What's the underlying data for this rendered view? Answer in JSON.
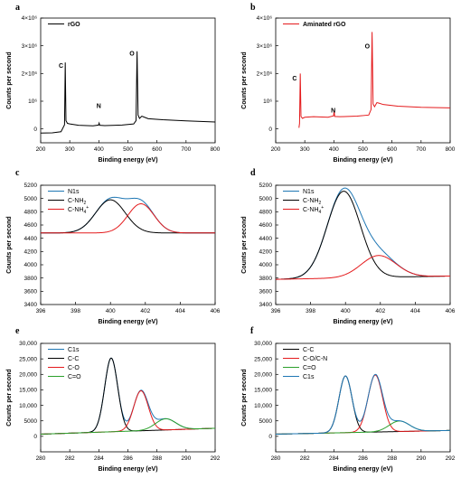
{
  "chart_data": [
    {
      "id": "a",
      "panel_label": "a",
      "type": "line",
      "xlabel": "Binding energy (eV)",
      "ylabel": "Counts per second",
      "xlim": [
        200,
        800
      ],
      "ylim": [
        -500000,
        4000000
      ],
      "xticks": [
        200,
        300,
        400,
        500,
        600,
        700,
        800
      ],
      "yticks": [
        {
          "value": 0,
          "label": "0"
        },
        {
          "value": 1000000,
          "label": "10⁶"
        },
        {
          "value": 2000000,
          "label": "2×10⁶"
        },
        {
          "value": 3000000,
          "label": "3×10⁶"
        },
        {
          "value": 4000000,
          "label": "4×10⁶"
        }
      ],
      "legend": {
        "position": "top-left",
        "bold": true
      },
      "series": [
        {
          "name": "rGO",
          "color": "#000000",
          "x": [
            200,
            240,
            270,
            282,
            284.5,
            287,
            292,
            300,
            330,
            380,
            399,
            401,
            403,
            420,
            480,
            520,
            528,
            531.5,
            535,
            540,
            548,
            555,
            570,
            620,
            700,
            800
          ],
          "y": [
            -150000,
            -140000,
            -100000,
            150000,
            2400000,
            300000,
            200000,
            180000,
            130000,
            110000,
            140000,
            210000,
            130000,
            120000,
            140000,
            180000,
            300000,
            2800000,
            500000,
            380000,
            460000,
            430000,
            370000,
            330000,
            290000,
            250000
          ]
        }
      ],
      "annotations": [
        {
          "text": "C",
          "x": 270,
          "y": 2200000
        },
        {
          "text": "N",
          "x": 400,
          "y": 750000
        },
        {
          "text": "O",
          "x": 514,
          "y": 2650000
        }
      ]
    },
    {
      "id": "b",
      "panel_label": "b",
      "type": "line",
      "xlabel": "Binding energy (eV)",
      "ylabel": "Counts per second",
      "xlim": [
        200,
        800
      ],
      "ylim": [
        -500000,
        4000000
      ],
      "xticks": [
        200,
        300,
        400,
        500,
        600,
        700,
        800
      ],
      "yticks": [
        {
          "value": 0,
          "label": "0"
        },
        {
          "value": 1000000,
          "label": "10⁶"
        },
        {
          "value": 2000000,
          "label": "2×10⁶"
        },
        {
          "value": 3000000,
          "label": "3×10⁶"
        },
        {
          "value": 4000000,
          "label": "4×10⁶"
        }
      ],
      "legend": {
        "position": "top-left",
        "bold": true
      },
      "series": [
        {
          "name": "Aminated rGO",
          "color": "#e41a1c",
          "x": [
            280,
            282,
            284.5,
            287,
            292,
            300,
            330,
            380,
            399,
            401,
            403,
            420,
            480,
            520,
            528,
            531.5,
            535,
            540,
            548,
            555,
            570,
            620,
            700,
            800
          ],
          "y": [
            40000,
            200000,
            2000000,
            450000,
            380000,
            420000,
            440000,
            420000,
            470000,
            650000,
            450000,
            440000,
            460000,
            500000,
            700000,
            3500000,
            900000,
            800000,
            950000,
            930000,
            880000,
            820000,
            780000,
            760000
          ]
        }
      ],
      "annotations": [
        {
          "text": "C",
          "x": 265,
          "y": 1750000
        },
        {
          "text": "N",
          "x": 398,
          "y": 600000
        },
        {
          "text": "O",
          "x": 515,
          "y": 2900000
        }
      ]
    },
    {
      "id": "c",
      "panel_label": "c",
      "type": "line",
      "xlabel": "Binding energy (eV)",
      "ylabel": "Counts per second",
      "xlim": [
        396,
        406
      ],
      "ylim": [
        3400,
        5200
      ],
      "xticks": [
        396,
        398,
        400,
        402,
        404,
        406
      ],
      "yticks": [
        {
          "value": 3400,
          "label": "3400"
        },
        {
          "value": 3600,
          "label": "3600"
        },
        {
          "value": 3800,
          "label": "3800"
        },
        {
          "value": 4000,
          "label": "4000"
        },
        {
          "value": 4200,
          "label": "4200"
        },
        {
          "value": 4400,
          "label": "4400"
        },
        {
          "value": 4600,
          "label": "4600"
        },
        {
          "value": 4800,
          "label": "4800"
        },
        {
          "value": 5000,
          "label": "5000"
        },
        {
          "value": 5200,
          "label": "5200"
        }
      ],
      "legend": {
        "position": "top-left",
        "bold": false
      },
      "baseline": 4480,
      "series": [
        {
          "name": "N1s",
          "color": "#1f77b4",
          "peaks": [
            [
              400.0,
              500,
              0.85
            ],
            [
              401.75,
              440,
              0.75
            ]
          ]
        },
        {
          "name": "C-NH",
          "sub": "2",
          "sup": "",
          "color": "#000000",
          "peaks": [
            [
              400.0,
              500,
              0.85
            ]
          ]
        },
        {
          "name": "C-NH",
          "sub": "4",
          "sup": "+",
          "color": "#e41a1c",
          "peaks": [
            [
              401.75,
              440,
              0.75
            ]
          ]
        }
      ]
    },
    {
      "id": "d",
      "panel_label": "d",
      "type": "line",
      "xlabel": "Binding energy (eV)",
      "ylabel": "Counts per second",
      "xlim": [
        396,
        406
      ],
      "ylim": [
        3400,
        5200
      ],
      "xticks": [
        396,
        398,
        400,
        402,
        404,
        406
      ],
      "yticks": [
        {
          "value": 3400,
          "label": "3400"
        },
        {
          "value": 3600,
          "label": "3600"
        },
        {
          "value": 3800,
          "label": "3800"
        },
        {
          "value": 4000,
          "label": "4000"
        },
        {
          "value": 4200,
          "label": "4200"
        },
        {
          "value": 4400,
          "label": "4400"
        },
        {
          "value": 4600,
          "label": "4600"
        },
        {
          "value": 4800,
          "label": "4800"
        },
        {
          "value": 5000,
          "label": "5000"
        },
        {
          "value": 5200,
          "label": "5200"
        }
      ],
      "legend": {
        "position": "top-left",
        "bold": false
      },
      "baseline_tilt": [
        396,
        3780,
        406,
        3830
      ],
      "series": [
        {
          "name": "N1s",
          "color": "#1f77b4",
          "peaks": [
            [
              399.9,
              1310,
              0.95
            ],
            [
              401.9,
              330,
              1.0
            ]
          ]
        },
        {
          "name": "C-NH",
          "sub": "2",
          "sup": "",
          "color": "#000000",
          "peaks": [
            [
              399.9,
              1310,
              0.95
            ]
          ]
        },
        {
          "name": "C-NH",
          "sub": "4",
          "sup": "+",
          "color": "#e41a1c",
          "peaks": [
            [
              401.9,
              330,
              1.0
            ]
          ]
        }
      ]
    },
    {
      "id": "e",
      "panel_label": "e",
      "type": "line",
      "xlabel": "Binding energy (eV)",
      "ylabel": "Counts per second",
      "xlim": [
        280,
        292
      ],
      "ylim": [
        -5000,
        30000
      ],
      "xticks": [
        280,
        282,
        284,
        286,
        288,
        290,
        292
      ],
      "yticks": [
        {
          "value": 0,
          "label": "0"
        },
        {
          "value": 5000,
          "label": "5000"
        },
        {
          "value": 10000,
          "label": "10,000"
        },
        {
          "value": 15000,
          "label": "15,000"
        },
        {
          "value": 20000,
          "label": "20,000"
        },
        {
          "value": 25000,
          "label": "25,000"
        },
        {
          "value": 30000,
          "label": "30,000"
        }
      ],
      "legend": {
        "position": "top-left",
        "bold": false
      },
      "baseline_tilt": [
        280,
        700,
        292,
        2600
      ],
      "series": [
        {
          "name": "C1s",
          "color": "#1f77b4",
          "peaks": [
            [
              284.85,
              23800,
              0.45
            ],
            [
              286.9,
              12900,
              0.5
            ],
            [
              288.6,
              3600,
              0.7
            ]
          ]
        },
        {
          "name": "C-C",
          "sub": "",
          "sup": "",
          "color": "#000000",
          "peaks": [
            [
              284.85,
              23800,
              0.45
            ]
          ]
        },
        {
          "name": "C-O",
          "sub": "",
          "sup": "",
          "color": "#e41a1c",
          "peaks": [
            [
              286.9,
              12900,
              0.5
            ]
          ]
        },
        {
          "name": "C=O",
          "sub": "",
          "sup": "",
          "color": "#2ca02c",
          "peaks": [
            [
              288.6,
              3600,
              0.7
            ]
          ]
        }
      ]
    },
    {
      "id": "f",
      "panel_label": "f",
      "type": "line",
      "xlabel": "Binding energy (eV)",
      "ylabel": "Counts per second",
      "xlim": [
        280,
        292
      ],
      "ylim": [
        -5000,
        30000
      ],
      "xticks": [
        280,
        282,
        284,
        286,
        288,
        290,
        292
      ],
      "yticks": [
        {
          "value": 0,
          "label": "0"
        },
        {
          "value": 5000,
          "label": "5000"
        },
        {
          "value": 10000,
          "label": "10,000"
        },
        {
          "value": 15000,
          "label": "15,000"
        },
        {
          "value": 20000,
          "label": "20,000"
        },
        {
          "value": 25000,
          "label": "25,000"
        },
        {
          "value": 30000,
          "label": "30,000"
        }
      ],
      "legend": {
        "position": "top-left",
        "bold": false
      },
      "baseline_tilt": [
        280,
        700,
        292,
        1900
      ],
      "series": [
        {
          "name": "C-C",
          "sub": "",
          "sup": "",
          "color": "#000000",
          "peaks": [
            [
              284.8,
              18300,
              0.45
            ]
          ]
        },
        {
          "name": "C-O/C-N",
          "sub": "",
          "sup": "",
          "color": "#e41a1c",
          "peaks": [
            [
              286.85,
              18400,
              0.5
            ]
          ]
        },
        {
          "name": "C=O",
          "sub": "",
          "sup": "",
          "color": "#2ca02c",
          "peaks": [
            [
              288.5,
              3400,
              0.7
            ]
          ]
        },
        {
          "name": "C1s",
          "color": "#1f77b4",
          "peaks": [
            [
              284.8,
              18300,
              0.45
            ],
            [
              286.85,
              18400,
              0.5
            ],
            [
              288.5,
              3400,
              0.7
            ]
          ]
        }
      ]
    }
  ]
}
